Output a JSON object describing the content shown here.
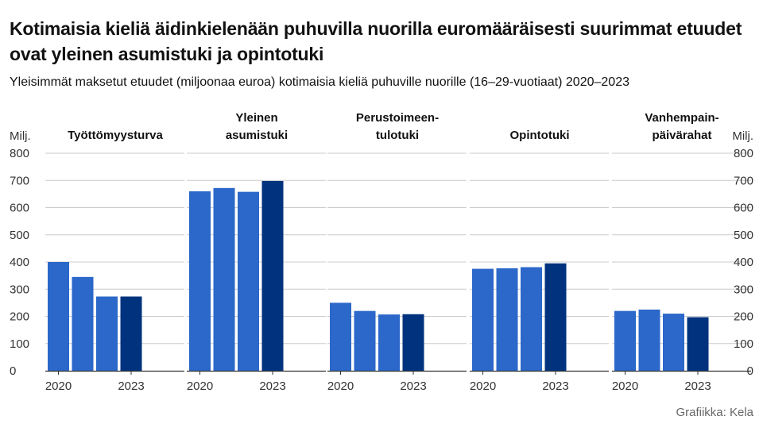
{
  "title": "Kotimaisia kieliä äidinkielenään puhuvilla nuorilla euromääräisesti suurimmat etuudet ovat yleinen asumistuki ja opintotuki",
  "subtitle": "Yleisimmät maksetut etuudet (miljoonaa euroa) kotimaisia kieliä puhuville nuorille (16–29-vuotiaat) 2020–2023",
  "credit": "Grafiikka: Kela",
  "colors": {
    "bar": "#2b68c9",
    "bar_last": "#00327e",
    "grid": "#cccccc",
    "axis": "#333333"
  },
  "chart_data": {
    "type": "bar",
    "unit_label": "Milj.",
    "ylim": [
      0,
      800
    ],
    "yticks": [
      0,
      100,
      200,
      300,
      400,
      500,
      600,
      700,
      800
    ],
    "grid": true,
    "categories": [
      "2020",
      "2021",
      "2022",
      "2023"
    ],
    "x_tick_labels": [
      "2020",
      "",
      "",
      "2023"
    ],
    "panels": [
      {
        "title": [
          "Työttömyysturva"
        ],
        "values": [
          400,
          345,
          273,
          273
        ]
      },
      {
        "title": [
          "Yleinen",
          "asumistuki"
        ],
        "values": [
          660,
          672,
          658,
          698
        ]
      },
      {
        "title": [
          "Perustoimeen-",
          "tulotuki"
        ],
        "values": [
          250,
          220,
          207,
          208
        ]
      },
      {
        "title": [
          "Opintotuki"
        ],
        "values": [
          375,
          377,
          381,
          395
        ]
      },
      {
        "title": [
          "Vanhempain-",
          "päivärahat"
        ],
        "values": [
          220,
          225,
          210,
          197
        ]
      }
    ]
  }
}
